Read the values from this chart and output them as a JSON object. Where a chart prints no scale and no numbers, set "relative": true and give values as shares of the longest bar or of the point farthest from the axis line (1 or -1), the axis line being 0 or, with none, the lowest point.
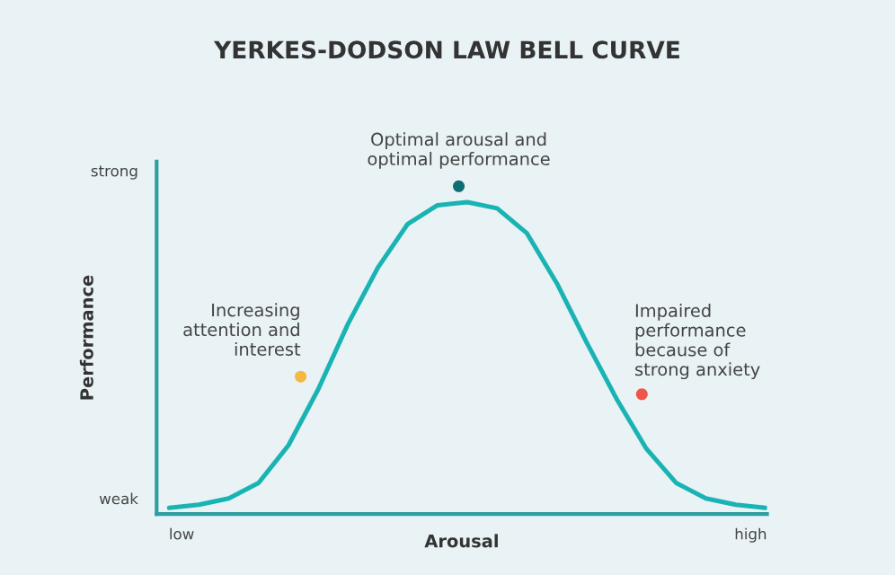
{
  "chart_data": {
    "type": "line",
    "title": "YERKES-DODSON LAW BELL CURVE",
    "xlabel": "Arousal",
    "ylabel": "Performance",
    "relative": true,
    "categories": [
      null,
      null,
      null,
      null,
      null,
      null,
      null,
      null,
      null,
      null,
      null,
      null,
      null,
      null,
      null,
      null,
      null,
      null,
      null,
      null,
      null
    ],
    "series": [
      {
        "color": "#1ab3b3",
        "values": [
          0.02,
          0.03,
          0.05,
          0.1,
          0.22,
          0.4,
          0.61,
          0.79,
          0.93,
          0.99,
          1,
          0.98,
          0.9,
          0.74,
          0.55,
          0.37,
          0.21,
          0.1,
          0.05,
          0.03,
          0.02
        ]
      }
    ],
    "annotations": [
      "Increasing\nattention and\ninterest",
      "Optimal arousal and\noptimal performance",
      "Impaired\nperformance\nbecause of\nstrong anxiety",
      "strong",
      "weak",
      "low",
      "high"
    ]
  }
}
